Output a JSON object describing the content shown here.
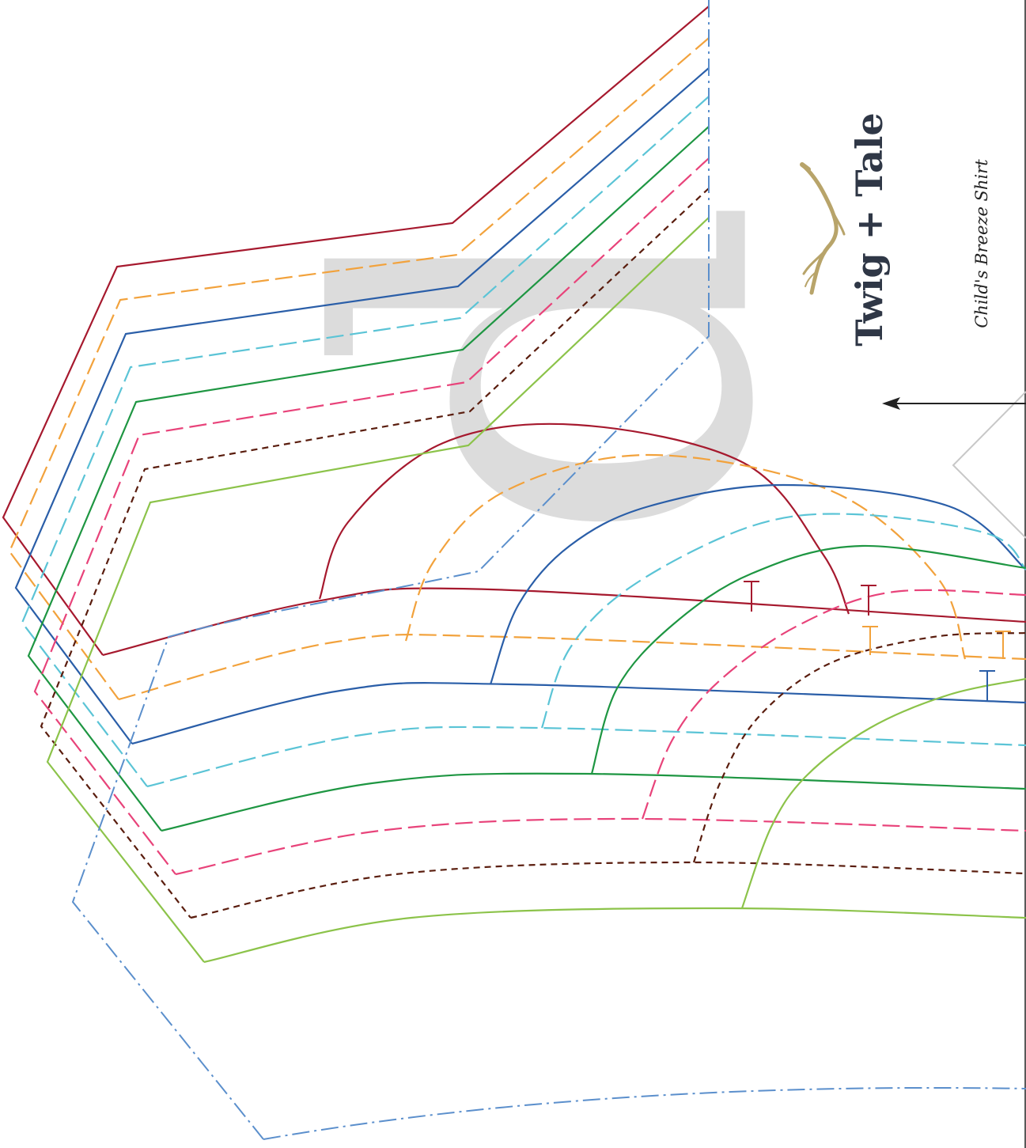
{
  "brand": {
    "name": "Twig + Tale",
    "pattern_name": "Child's Breeze Shirt",
    "logo": "twig-logo"
  },
  "piece_label": "d",
  "size_lines": [
    {
      "color": "#a6192e",
      "dash": "solid"
    },
    {
      "color": "#f2a23c",
      "dash": "long-dash"
    },
    {
      "color": "#2a5ea8",
      "dash": "solid"
    },
    {
      "color": "#5bc4d6",
      "dash": "long-dash"
    },
    {
      "color": "#1e9642",
      "dash": "solid"
    },
    {
      "color": "#e8437a",
      "dash": "long-dash"
    },
    {
      "color": "#5a1d0e",
      "dash": "short-dash"
    },
    {
      "color": "#8cc34a",
      "dash": "solid"
    }
  ],
  "outer_line": {
    "color": "#5b8fcc",
    "dash": "dash-dot"
  },
  "icons": {
    "grainline": "grainline-arrow-icon",
    "fold": "fold-marker-icon",
    "notch": "notch-marker-icon"
  }
}
